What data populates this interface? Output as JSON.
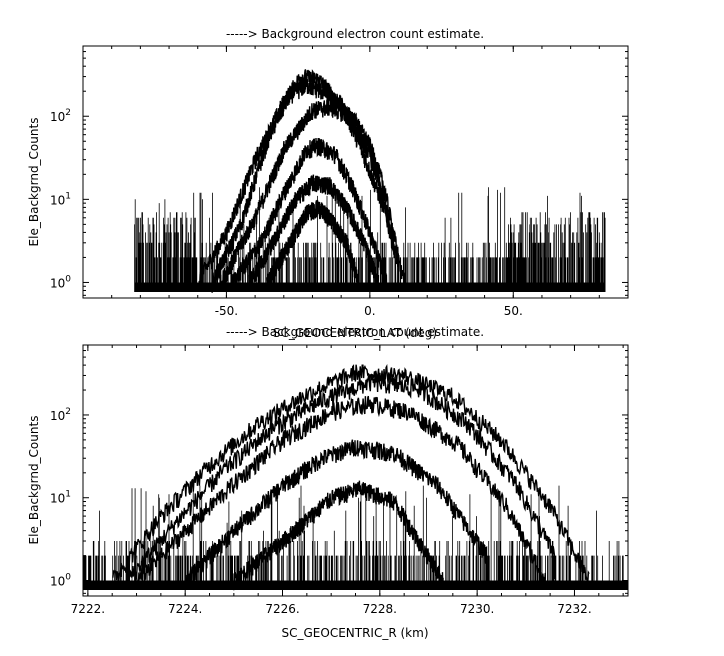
{
  "chart_data": [
    {
      "type": "line",
      "title": "-----> Background electron count estimate.",
      "xlabel": "SC_GEOCENTRIC_LAT (deg)",
      "ylabel": "Ele_Backgrnd_Counts",
      "xlim": [
        -100,
        90
      ],
      "ylim": [
        0.65,
        700
      ],
      "yscale": "log",
      "xticks": [
        {
          "v": -50,
          "label": "-50."
        },
        {
          "v": 0,
          "label": "0."
        },
        {
          "v": 50,
          "label": "50."
        }
      ],
      "yticks": [
        {
          "v": 1,
          "label": "10",
          "exp": "0"
        },
        {
          "v": 10,
          "label": "10",
          "exp": "1"
        },
        {
          "v": 100,
          "label": "10",
          "exp": "2"
        }
      ],
      "data_extent": [
        -82,
        82
      ],
      "series": [
        {
          "x": [
            -60,
            -50,
            -40,
            -30,
            -24,
            -18,
            -10,
            -5,
            0,
            5,
            8,
            12
          ],
          "y": [
            1,
            4,
            30,
            150,
            300,
            280,
            140,
            60,
            22,
            8,
            3,
            1
          ]
        },
        {
          "x": [
            -55,
            -45,
            -35,
            -28,
            -22,
            -15,
            -8,
            0,
            5,
            9
          ],
          "y": [
            1,
            5,
            60,
            180,
            240,
            190,
            110,
            35,
            10,
            2
          ]
        },
        {
          "x": [
            -52,
            -40,
            -30,
            -20,
            -14,
            -6,
            0,
            5,
            10
          ],
          "y": [
            1,
            6,
            40,
            120,
            130,
            100,
            45,
            14,
            2
          ]
        },
        {
          "x": [
            -48,
            -38,
            -30,
            -22,
            -18,
            -12,
            -6,
            0,
            6
          ],
          "y": [
            1,
            3,
            12,
            40,
            45,
            35,
            14,
            4,
            1
          ]
        },
        {
          "x": [
            -42,
            -34,
            -26,
            -20,
            -14,
            -8,
            -2,
            3
          ],
          "y": [
            1,
            3,
            10,
            16,
            15,
            8,
            3,
            1
          ]
        },
        {
          "x": [
            -36,
            -28,
            -22,
            -18,
            -14,
            -8,
            -4
          ],
          "y": [
            1,
            3,
            7,
            8,
            6,
            3,
            1
          ]
        }
      ]
    },
    {
      "type": "line",
      "title": "-----> Background electron count estimate.",
      "xlabel": "SC_GEOCENTRIC_R (km)",
      "ylabel": "Ele_Backgrnd_Counts",
      "xlim": [
        7221.9,
        7233.1
      ],
      "ylim": [
        0.65,
        700
      ],
      "yscale": "log",
      "xticks": [
        {
          "v": 7222,
          "label": "7222."
        },
        {
          "v": 7224,
          "label": "7224."
        },
        {
          "v": 7226,
          "label": "7226."
        },
        {
          "v": 7228,
          "label": "7228."
        },
        {
          "v": 7230,
          "label": "7230."
        },
        {
          "v": 7232,
          "label": "7232."
        }
      ],
      "yticks": [
        {
          "v": 1,
          "label": "10",
          "exp": "0"
        },
        {
          "v": 10,
          "label": "10",
          "exp": "1"
        },
        {
          "v": 100,
          "label": "10",
          "exp": "2"
        }
      ],
      "data_extent": [
        7221.9,
        7233.1
      ],
      "series": [
        {
          "x": [
            7222.5,
            7223.5,
            7224.5,
            7225.5,
            7226.5,
            7227.5,
            7228.5,
            7229.5,
            7230.5,
            7231.5,
            7232.3
          ],
          "y": [
            1,
            6,
            25,
            80,
            180,
            330,
            300,
            170,
            50,
            8,
            1
          ]
        },
        {
          "x": [
            7222.8,
            7223.8,
            7224.8,
            7225.8,
            7226.8,
            7227.8,
            7228.8,
            7229.8,
            7230.8,
            7231.6
          ],
          "y": [
            1,
            5,
            22,
            70,
            150,
            250,
            210,
            80,
            15,
            2
          ]
        },
        {
          "x": [
            7223.0,
            7224.0,
            7225.0,
            7226.0,
            7227.0,
            7227.8,
            7228.6,
            7229.6,
            7230.6,
            7231.4
          ],
          "y": [
            1,
            4,
            15,
            50,
            110,
            140,
            110,
            45,
            8,
            1
          ]
        },
        {
          "x": [
            7224.0,
            7225.0,
            7226.0,
            7226.8,
            7227.5,
            7228.3,
            7229.2,
            7230.2
          ],
          "y": [
            1,
            4,
            14,
            30,
            42,
            35,
            14,
            2
          ]
        },
        {
          "x": [
            7225.0,
            7226.0,
            7227.0,
            7227.6,
            7228.3,
            7229.3
          ],
          "y": [
            1,
            3,
            10,
            13,
            9,
            1
          ]
        }
      ]
    }
  ]
}
